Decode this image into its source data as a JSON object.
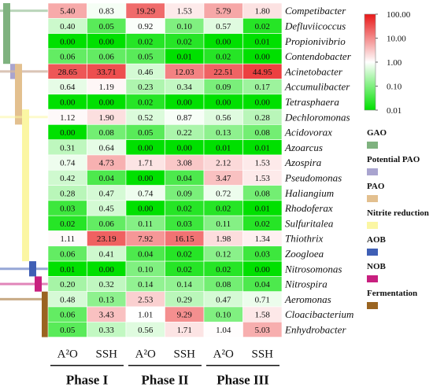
{
  "chart_data": {
    "type": "heatmap",
    "title": "",
    "colorscale": {
      "type": "log",
      "low_color": "#00e000",
      "mid_color": "#ffffff",
      "high_color": "#e81818",
      "ticks": [
        {
          "value": 100,
          "label": "100.00"
        },
        {
          "value": 10,
          "label": "10.00"
        },
        {
          "value": 1,
          "label": "1.00"
        },
        {
          "value": 0.1,
          "label": "0.10"
        },
        {
          "value": 0.01,
          "label": "0.01"
        }
      ]
    },
    "columns": [
      "A²O",
      "SSH",
      "A²O",
      "SSH",
      "A²O",
      "SSH"
    ],
    "phases": [
      {
        "label": "Phase I",
        "span": [
          0,
          1
        ]
      },
      {
        "label": "Phase II",
        "span": [
          2,
          3
        ]
      },
      {
        "label": "Phase III",
        "span": [
          4,
          5
        ]
      }
    ],
    "rows": [
      {
        "name": "Competibacter",
        "values": [
          5.4,
          0.83,
          19.29,
          1.53,
          5.79,
          1.8
        ],
        "labels": [
          "5.40",
          "0.83",
          "19.29",
          "1.53",
          "5.79",
          "1.80"
        ]
      },
      {
        "name": "Defluviicoccus",
        "values": [
          0.4,
          0.05,
          0.92,
          0.1,
          0.57,
          0.02
        ],
        "labels": [
          "0.40",
          "0.05",
          "0.92",
          "0.10",
          "0.57",
          "0.02"
        ]
      },
      {
        "name": "Propionivibrio",
        "values": [
          0.0,
          0.0,
          0.02,
          0.02,
          0.0,
          0.01
        ],
        "labels": [
          "0.00",
          "0.00",
          "0.02",
          "0.02",
          "0.00",
          "0.01"
        ]
      },
      {
        "name": "Contendobacter",
        "values": [
          0.06,
          0.06,
          0.05,
          0.01,
          0.02,
          0.0
        ],
        "labels": [
          "0.06",
          "0.06",
          "0.05",
          "0.01",
          "0.02",
          "0.00"
        ]
      },
      {
        "name": "Acinetobacter",
        "values": [
          28.65,
          33.71,
          0.46,
          12.03,
          22.51,
          44.95
        ],
        "labels": [
          "28.65",
          "33.71",
          "0.46",
          "12.03",
          "22.51",
          "44.95"
        ]
      },
      {
        "name": "Accumulibacter",
        "values": [
          0.64,
          1.19,
          0.23,
          0.34,
          0.09,
          0.17
        ],
        "labels": [
          "0.64",
          "1.19",
          "0.23",
          "0.34",
          "0.09",
          "0.17"
        ]
      },
      {
        "name": "Tetrasphaera",
        "values": [
          0.0,
          0.0,
          0.02,
          0.0,
          0.0,
          0.0
        ],
        "labels": [
          "0.00",
          "0.00",
          "0.02",
          "0.00",
          "0.00",
          "0.00"
        ]
      },
      {
        "name": "Dechloromonas",
        "values": [
          1.12,
          1.9,
          0.52,
          0.87,
          0.56,
          0.28
        ],
        "labels": [
          "1.12",
          "1.90",
          "0.52",
          "0.87",
          "0.56",
          "0.28"
        ]
      },
      {
        "name": "Acidovorax",
        "values": [
          0.0,
          0.08,
          0.05,
          0.22,
          0.13,
          0.08
        ],
        "labels": [
          "0.00",
          "0.08",
          "0.05",
          "0.22",
          "0.13",
          "0.08"
        ]
      },
      {
        "name": "Azoarcus",
        "values": [
          0.31,
          0.64,
          0.0,
          0.0,
          0.01,
          0.01
        ],
        "labels": [
          "0.31",
          "0.64",
          "0.00",
          "0.00",
          "0.01",
          "0.01"
        ]
      },
      {
        "name": "Azospira",
        "values": [
          0.74,
          4.73,
          1.71,
          3.08,
          2.12,
          1.53
        ],
        "labels": [
          "0.74",
          "4.73",
          "1.71",
          "3.08",
          "2.12",
          "1.53"
        ]
      },
      {
        "name": "Pseudomonas",
        "values": [
          0.42,
          0.04,
          0.0,
          0.04,
          3.47,
          1.53
        ],
        "labels": [
          "0.42",
          "0.04",
          "0.00",
          "0.04",
          "3.47",
          "1.53"
        ]
      },
      {
        "name": "Haliangium",
        "values": [
          0.28,
          0.47,
          0.74,
          0.09,
          0.72,
          0.08
        ],
        "labels": [
          "0.28",
          "0.47",
          "0.74",
          "0.09",
          "0.72",
          "0.08"
        ]
      },
      {
        "name": "Rhodoferax",
        "values": [
          0.03,
          0.45,
          0.0,
          0.02,
          0.02,
          0.01
        ],
        "labels": [
          "0.03",
          "0.45",
          "0.00",
          "0.02",
          "0.02",
          "0.01"
        ]
      },
      {
        "name": "Sulfuritalea",
        "values": [
          0.02,
          0.06,
          0.11,
          0.03,
          0.11,
          0.02
        ],
        "labels": [
          "0.02",
          "0.06",
          "0.11",
          "0.03",
          "0.11",
          "0.02"
        ]
      },
      {
        "name": "Thiothrix",
        "values": [
          1.11,
          23.19,
          7.92,
          16.15,
          1.98,
          1.34
        ],
        "labels": [
          "1.11",
          "23.19",
          "7.92",
          "16.15",
          "1.98",
          "1.34"
        ]
      },
      {
        "name": "Zoogloea",
        "values": [
          0.06,
          0.41,
          0.04,
          0.02,
          0.12,
          0.03
        ],
        "labels": [
          "0.06",
          "0.41",
          "0.04",
          "0.02",
          "0.12",
          "0.03"
        ]
      },
      {
        "name": "Nitrosomonas",
        "values": [
          0.01,
          0.0,
          0.1,
          0.02,
          0.02,
          0.0
        ],
        "labels": [
          "0.01",
          "0.00",
          "0.10",
          "0.02",
          "0.02",
          "0.00"
        ]
      },
      {
        "name": "Nitrospira",
        "values": [
          0.2,
          0.32,
          0.14,
          0.14,
          0.08,
          0.04
        ],
        "labels": [
          "0.20",
          "0.32",
          "0.14",
          "0.14",
          "0.08",
          "0.04"
        ]
      },
      {
        "name": "Aeromonas",
        "values": [
          0.48,
          0.13,
          2.53,
          0.29,
          0.47,
          0.71
        ],
        "labels": [
          "0.48",
          "0.13",
          "2.53",
          "0.29",
          "0.47",
          "0.71"
        ]
      },
      {
        "name": "Cloacibacterium",
        "values": [
          0.06,
          3.43,
          1.01,
          9.29,
          0.1,
          1.58
        ],
        "labels": [
          "0.06",
          "3.43",
          "1.01",
          "9.29",
          "0.10",
          "1.58"
        ]
      },
      {
        "name": "Enhydrobacter",
        "values": [
          0.05,
          0.33,
          0.56,
          1.71,
          1.04,
          5.03
        ],
        "labels": [
          "0.05",
          "0.33",
          "0.56",
          "1.71",
          "1.04",
          "5.03"
        ]
      }
    ],
    "groups": [
      {
        "name": "GAO",
        "color": "#7fb27f",
        "row_start": 0,
        "row_end": 3
      },
      {
        "name": "Potential PAO",
        "color": "#a9a4cf",
        "row_start": 4,
        "row_end": 4
      },
      {
        "name": "PAO",
        "color": "#e3c08f",
        "row_start": 4,
        "row_end": 7
      },
      {
        "name": "Nitrite reduction",
        "color": "#fbf6a3",
        "row_start": 7,
        "row_end": 16
      },
      {
        "name": "AOB",
        "color": "#3f5fb5",
        "row_start": 17,
        "row_end": 17
      },
      {
        "name": "NOB",
        "color": "#c8207f",
        "row_start": 18,
        "row_end": 18
      },
      {
        "name": "Fermentation",
        "color": "#9a6421",
        "row_start": 19,
        "row_end": 21
      }
    ]
  }
}
